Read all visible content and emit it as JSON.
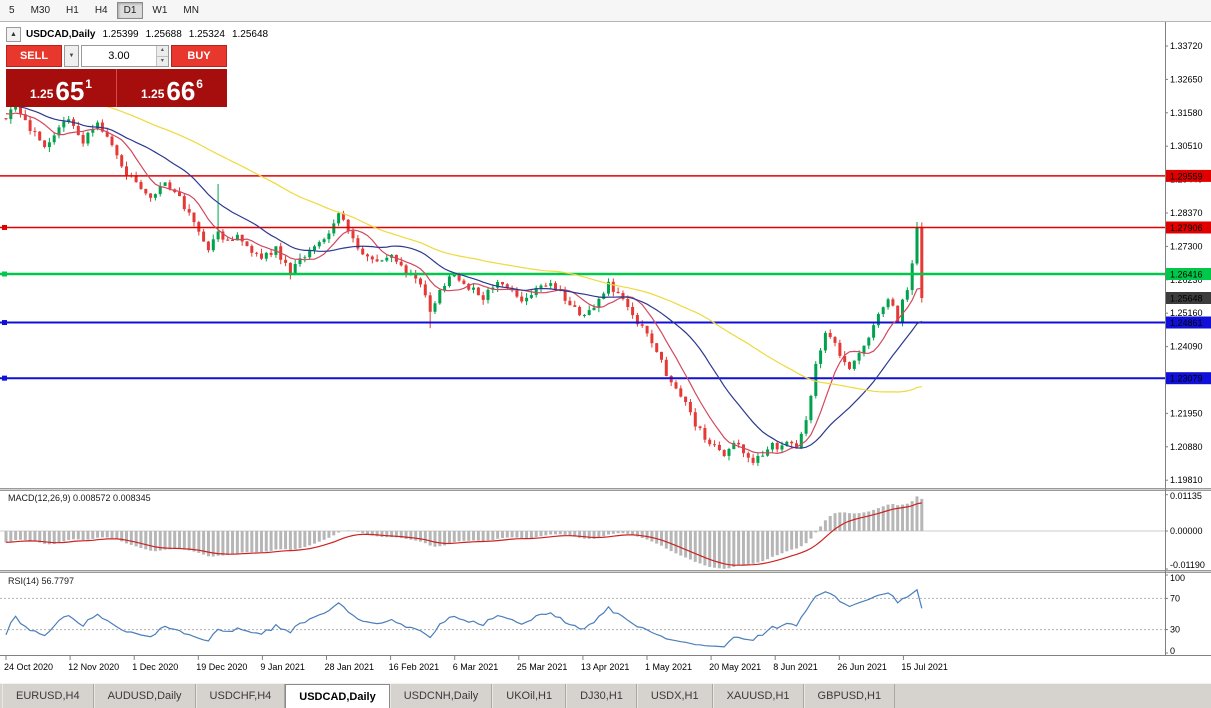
{
  "colors": {
    "up": "#00a24d",
    "down": "#e53935",
    "macd_hist": "#b6b6b6",
    "macd_signal": "#cc2222",
    "rsi_line": "#4a7ebb",
    "current_badge": "#3c3c3c"
  },
  "toolbar": {
    "timeframes": [
      {
        "label": "5",
        "active": false
      },
      {
        "label": "M30",
        "active": false
      },
      {
        "label": "H1",
        "active": false
      },
      {
        "label": "H4",
        "active": false
      },
      {
        "label": "D1",
        "active": true
      },
      {
        "label": "W1",
        "active": false
      },
      {
        "label": "MN",
        "active": false
      }
    ]
  },
  "chart_header": {
    "collapse_icon": "▲",
    "symbol_label": "USDCAD,Daily",
    "open": "1.25399",
    "high": "1.25688",
    "low": "1.25324",
    "close": "1.25648"
  },
  "trade_panel": {
    "sell_label": "SELL",
    "buy_label": "BUY",
    "volume": "3.00",
    "volume_dropdown_icon": "▼",
    "volume_up_icon": "▴",
    "volume_down_icon": "▾",
    "sell_price_prefix": "1.25",
    "sell_price_big": "65",
    "sell_price_sup": "1",
    "buy_price_prefix": "1.25",
    "buy_price_big": "66",
    "buy_price_sup": "6"
  },
  "macd": {
    "label": "MACD(12,26,9) 0.008572 0.008345"
  },
  "rsi": {
    "label": "RSI(14) 56.7797"
  },
  "chart_data": {
    "type": "candlestick",
    "symbol": "USDCAD",
    "timeframe": "Daily",
    "last_ohlc": {
      "open": 1.25399,
      "high": 1.25688,
      "low": 1.25324,
      "close": 1.25648
    },
    "current_price": 1.25648,
    "current_price_label": "1.25648",
    "price_axis_labels": [
      "1.33720",
      "1.32650",
      "1.31580",
      "1.30510",
      "1.29440",
      "1.28370",
      "1.27300",
      "1.26230",
      "1.25160",
      "1.24090",
      "1.23020",
      "1.21950",
      "1.20880",
      "1.19810"
    ],
    "date_axis_labels": [
      "24 Oct 2020",
      "12 Nov 2020",
      "1 Dec 2020",
      "19 Dec 2020",
      "9 Jan 2021",
      "28 Jan 2021",
      "16 Feb 2021",
      "6 Mar 2021",
      "25 Mar 2021",
      "13 Apr 2021",
      "1 May 2021",
      "20 May 2021",
      "8 Jun 2021",
      "26 Jun 2021",
      "15 Jul 2021"
    ],
    "candle_count": 191,
    "anchors": [
      [
        0,
        1.314
      ],
      [
        2,
        1.318
      ],
      [
        5,
        1.311
      ],
      [
        8,
        1.3045
      ],
      [
        11,
        1.312
      ],
      [
        13,
        1.314
      ],
      [
        16,
        1.307
      ],
      [
        19,
        1.313
      ],
      [
        22,
        1.3055
      ],
      [
        24,
        1.298
      ],
      [
        27,
        1.2935
      ],
      [
        30,
        1.289
      ],
      [
        33,
        1.293
      ],
      [
        36,
        1.288
      ],
      [
        38,
        1.283
      ],
      [
        40,
        1.277
      ],
      [
        42,
        1.272
      ],
      [
        44,
        1.2785
      ],
      [
        46,
        1.274
      ],
      [
        48,
        1.277
      ],
      [
        50,
        1.273
      ],
      [
        53,
        1.269
      ],
      [
        56,
        1.272
      ],
      [
        59,
        1.265
      ],
      [
        62,
        1.27
      ],
      [
        65,
        1.274
      ],
      [
        67,
        1.278
      ],
      [
        69,
        1.284
      ],
      [
        71,
        1.278
      ],
      [
        73,
        1.272
      ],
      [
        76,
        1.269
      ],
      [
        80,
        1.27
      ],
      [
        83,
        1.265
      ],
      [
        86,
        1.2615
      ],
      [
        88,
        1.252
      ],
      [
        90,
        1.259
      ],
      [
        93,
        1.264
      ],
      [
        96,
        1.26
      ],
      [
        99,
        1.2565
      ],
      [
        102,
        1.262
      ],
      [
        105,
        1.258
      ],
      [
        107,
        1.256
      ],
      [
        110,
        1.259
      ],
      [
        113,
        1.2615
      ],
      [
        116,
        1.256
      ],
      [
        118,
        1.253
      ],
      [
        120,
        1.25
      ],
      [
        122,
        1.253
      ],
      [
        125,
        1.261
      ],
      [
        128,
        1.256
      ],
      [
        131,
        1.248
      ],
      [
        133,
        1.245
      ],
      [
        135,
        1.24
      ],
      [
        137,
        1.232
      ],
      [
        139,
        1.228
      ],
      [
        141,
        1.223
      ],
      [
        143,
        1.216
      ],
      [
        145,
        1.212
      ],
      [
        147,
        1.209
      ],
      [
        149,
        1.206
      ],
      [
        151,
        1.211
      ],
      [
        153,
        1.2075
      ],
      [
        155,
        1.204
      ],
      [
        157,
        1.207
      ],
      [
        159,
        1.2095
      ],
      [
        160,
        1.208
      ],
      [
        162,
        1.211
      ],
      [
        164,
        1.2075
      ],
      [
        166,
        1.217
      ],
      [
        168,
        1.235
      ],
      [
        170,
        1.246
      ],
      [
        172,
        1.242
      ],
      [
        173,
        1.237
      ],
      [
        175,
        1.233
      ],
      [
        177,
        1.239
      ],
      [
        179,
        1.244
      ],
      [
        181,
        1.252
      ],
      [
        183,
        1.256
      ],
      [
        185,
        1.25
      ],
      [
        186,
        1.255
      ],
      [
        187,
        1.259
      ],
      [
        188,
        1.268
      ],
      [
        189,
        1.279
      ],
      [
        190,
        1.25648
      ]
    ],
    "special_wicks": [
      [
        44,
        "h",
        1.293
      ],
      [
        88,
        "l",
        1.2468
      ],
      [
        189,
        "h",
        1.2807
      ]
    ],
    "moving_averages": [
      {
        "period": 8,
        "color": "#d1485f"
      },
      {
        "period": 21,
        "color": "#2b3990"
      },
      {
        "period": 55,
        "color": "#efd93c"
      }
    ],
    "horizontal_lines": [
      {
        "price": 1.29559,
        "label": "1.29559",
        "color": "#e00000",
        "width": 1.5,
        "marker": false
      },
      {
        "price": 1.27906,
        "label": "1.27906",
        "color": "#e00000",
        "width": 1.5,
        "marker": true
      },
      {
        "price": 1.26416,
        "label": "1.26416",
        "color": "#00c84b",
        "width": 2.5,
        "marker": true
      },
      {
        "price": 1.24861,
        "label": "1.24861",
        "color": "#1010d8",
        "width": 2,
        "marker": true
      },
      {
        "price": 1.23079,
        "label": "1.23079",
        "color": "#1010d8",
        "width": 2,
        "marker": true
      }
    ],
    "indicators": {
      "macd": {
        "params": [
          12,
          26,
          9
        ],
        "value": "0.008572",
        "signal_value": "0.008345",
        "axis": [
          {
            "text": "0.01135",
            "value": 0.01135
          },
          {
            "text": "0.00000",
            "value": 0
          },
          {
            "text": "-0.01190",
            "value": -0.0119
          }
        ]
      },
      "rsi": {
        "period": 14,
        "value": "56.7797",
        "levels": [
          70,
          30
        ],
        "axis": [
          {
            "text": "100",
            "value": 100
          },
          {
            "text": "70",
            "value": 70
          },
          {
            "text": "30",
            "value": 30
          },
          {
            "text": "0",
            "value": 0
          }
        ]
      }
    }
  },
  "tabs": [
    {
      "label": "EURUSD,H4",
      "active": false
    },
    {
      "label": "AUDUSD,Daily",
      "active": false
    },
    {
      "label": "USDCHF,H4",
      "active": false
    },
    {
      "label": "USDCAD,Daily",
      "active": true
    },
    {
      "label": "USDCNH,Daily",
      "active": false
    },
    {
      "label": "UKOil,H1",
      "active": false
    },
    {
      "label": "DJ30,H1",
      "active": false
    },
    {
      "label": "USDX,H1",
      "active": false
    },
    {
      "label": "XAUUSD,H1",
      "active": false
    },
    {
      "label": "GBPUSD,H1",
      "active": false
    }
  ]
}
